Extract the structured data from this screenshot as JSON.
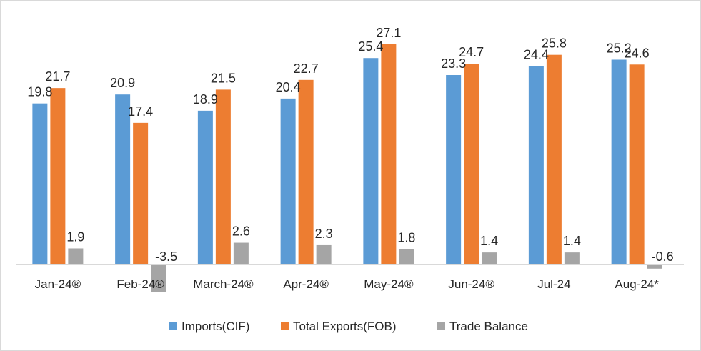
{
  "chart_data": {
    "type": "bar",
    "categories": [
      "Jan-24®",
      "Feb-24®",
      "March-24®",
      "Apr-24®",
      "May-24®",
      "Jun-24®",
      "Jul-24",
      "Aug-24*"
    ],
    "series": [
      {
        "name": "Imports(CIF)",
        "color": "#5b9bd5",
        "values": [
          19.8,
          20.9,
          18.9,
          20.4,
          25.4,
          23.3,
          24.4,
          25.2
        ]
      },
      {
        "name": "Total Exports(FOB)",
        "color": "#ed7d31",
        "values": [
          21.7,
          17.4,
          21.5,
          22.7,
          27.1,
          24.7,
          25.8,
          24.6
        ]
      },
      {
        "name": "Trade Balance",
        "color": "#a5a5a5",
        "values": [
          1.9,
          -3.5,
          2.6,
          2.3,
          1.8,
          1.4,
          1.4,
          -0.6
        ]
      }
    ],
    "value_labels": [
      [
        "19.8",
        "20.9",
        "18.9",
        "20.4",
        "25.4",
        "23.3",
        "24.4",
        "25.2"
      ],
      [
        "21.7",
        "17.4",
        "21.5",
        "22.7",
        "27.1",
        "24.7",
        "25.8",
        "24.6"
      ],
      [
        "1.9",
        "-3.5",
        "2.6",
        "2.3",
        "1.8",
        "1.4",
        "1.4",
        "-0.6"
      ]
    ],
    "legend_position": "bottom",
    "grid": false,
    "axis_line_color": "#d9d9d9"
  }
}
